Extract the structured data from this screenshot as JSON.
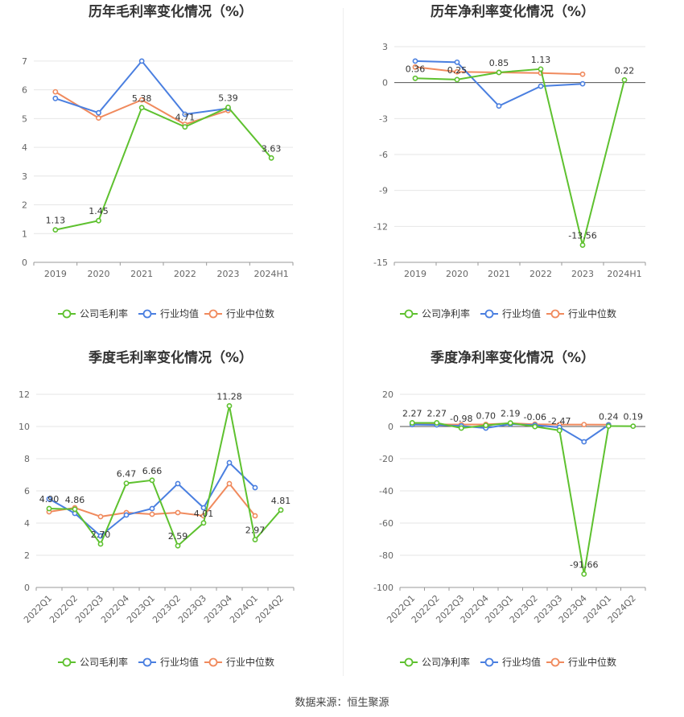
{
  "source": "数据来源：恒生聚源",
  "colors": {
    "company": "#5ec12f",
    "avg": "#4a7fe0",
    "median": "#f08a5d",
    "grid": "#e6e6e6",
    "axis": "#999999"
  },
  "chart_data": [
    {
      "type": "line",
      "title": "历年毛利率变化情况（%）",
      "categories": [
        "2019",
        "2020",
        "2021",
        "2022",
        "2023",
        "2024H1"
      ],
      "yticks": [
        0,
        1,
        2,
        3,
        4,
        5,
        6,
        7
      ],
      "ylim": [
        0,
        7.5
      ],
      "rotate_x": false,
      "series": [
        {
          "name": "公司毛利率",
          "key": "company",
          "values": [
            1.13,
            1.45,
            5.38,
            4.71,
            5.39,
            3.63
          ],
          "labels": [
            "1.13",
            "1.45",
            "5.38",
            "4.71",
            "5.39",
            "3.63"
          ]
        },
        {
          "name": "行业均值",
          "key": "avg",
          "values": [
            5.7,
            5.2,
            7.0,
            5.15,
            5.35,
            null
          ]
        },
        {
          "name": "行业中位数",
          "key": "median",
          "values": [
            5.93,
            5.02,
            5.65,
            4.8,
            5.28,
            null
          ]
        }
      ]
    },
    {
      "type": "line",
      "title": "历年净利率变化情况（%）",
      "categories": [
        "2019",
        "2020",
        "2021",
        "2022",
        "2023",
        "2024H1"
      ],
      "yticks": [
        3,
        0,
        -3,
        -6,
        -9,
        -12,
        -15
      ],
      "ylim": [
        -15,
        3
      ],
      "rotate_x": false,
      "series": [
        {
          "name": "公司净利率",
          "key": "company",
          "values": [
            0.36,
            0.25,
            0.85,
            1.13,
            -13.56,
            0.22
          ],
          "labels": [
            "0.36",
            "0.25",
            "0.85",
            "1.13",
            "-13.56",
            "0.22"
          ]
        },
        {
          "name": "行业均值",
          "key": "avg",
          "values": [
            1.8,
            1.7,
            -1.95,
            -0.3,
            -0.1,
            null
          ]
        },
        {
          "name": "行业中位数",
          "key": "median",
          "values": [
            1.3,
            0.9,
            0.85,
            0.8,
            0.7,
            null
          ]
        }
      ]
    },
    {
      "type": "line",
      "title": "季度毛利率变化情况（%）",
      "categories": [
        "2022Q1",
        "2022Q2",
        "2022Q3",
        "2022Q4",
        "2023Q1",
        "2023Q2",
        "2023Q3",
        "2023Q4",
        "2024Q1",
        "2024Q2"
      ],
      "yticks": [
        0,
        2,
        4,
        6,
        8,
        10,
        12
      ],
      "ylim": [
        0,
        12
      ],
      "rotate_x": true,
      "series": [
        {
          "name": "公司毛利率",
          "key": "company",
          "values": [
            4.9,
            4.86,
            2.7,
            6.47,
            6.66,
            2.59,
            4.01,
            11.28,
            2.97,
            4.81
          ],
          "labels": [
            "4.90",
            "4.86",
            "2.70",
            "6.47",
            "6.66",
            "2.59",
            "4.01",
            "11.28",
            "2.97",
            "4.81"
          ]
        },
        {
          "name": "行业均值",
          "key": "avg",
          "values": [
            5.5,
            4.6,
            3.2,
            4.5,
            4.9,
            6.45,
            4.95,
            7.75,
            6.2,
            null
          ]
        },
        {
          "name": "行业中位数",
          "key": "median",
          "values": [
            4.7,
            4.95,
            4.4,
            4.65,
            4.55,
            4.65,
            4.45,
            6.45,
            4.45,
            null
          ]
        }
      ]
    },
    {
      "type": "line",
      "title": "季度净利率变化情况（%）",
      "categories": [
        "2022Q1",
        "2022Q2",
        "2022Q3",
        "2022Q4",
        "2023Q1",
        "2023Q2",
        "2023Q3",
        "2023Q4",
        "2024Q1",
        "2024Q2"
      ],
      "yticks": [
        20,
        0,
        -20,
        -40,
        -60,
        -80,
        -100
      ],
      "ylim": [
        -100,
        20
      ],
      "rotate_x": true,
      "series": [
        {
          "name": "公司净利率",
          "key": "company",
          "values": [
            2.27,
            2.27,
            -0.98,
            0.7,
            2.19,
            -0.06,
            -2.47,
            -91.66,
            0.24,
            0.19
          ],
          "labels": [
            "2.27",
            "2.27",
            "-0.98",
            "0.70",
            "2.19",
            "-0.06",
            "-2.47",
            "-91.66",
            "0.24",
            "0.19"
          ]
        },
        {
          "name": "行业均值",
          "key": "avg",
          "values": [
            1.2,
            1.0,
            0.3,
            -1.0,
            1.5,
            0.8,
            -0.5,
            -9.5,
            1.0,
            null
          ]
        },
        {
          "name": "行业中位数",
          "key": "median",
          "values": [
            1.5,
            1.3,
            1.2,
            1.3,
            2.0,
            1.4,
            1.2,
            1.2,
            1.1,
            null
          ]
        }
      ]
    }
  ]
}
